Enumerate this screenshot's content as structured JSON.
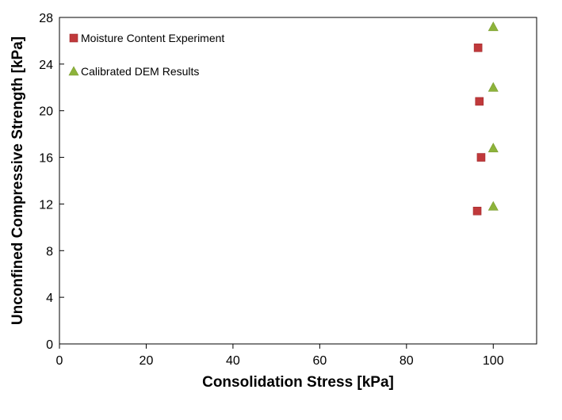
{
  "chart_data": {
    "type": "scatter",
    "title": "",
    "xlabel": "Consolidation Stress [kPa]",
    "ylabel": "Unconfined Compressive Strength [kPa]",
    "xlim": [
      0,
      110
    ],
    "ylim": [
      0,
      28
    ],
    "xticks": [
      "0",
      "20",
      "40",
      "60",
      "80",
      "100"
    ],
    "yticks": [
      "0",
      "4",
      "8",
      "12",
      "16",
      "20",
      "24",
      "28"
    ],
    "grid": false,
    "legend_position": "top-left",
    "series": [
      {
        "name": "Moisture Content Experiment",
        "marker": "square",
        "color": "#c0393b",
        "points": [
          {
            "x": 96.5,
            "y": 25.4
          },
          {
            "x": 96.8,
            "y": 20.8
          },
          {
            "x": 97.2,
            "y": 16.0
          },
          {
            "x": 96.3,
            "y": 11.4
          }
        ]
      },
      {
        "name": "Calibrated DEM Results",
        "marker": "triangle",
        "color": "#8db33b",
        "points": [
          {
            "x": 100,
            "y": 27.2
          },
          {
            "x": 100,
            "y": 22.0
          },
          {
            "x": 100,
            "y": 16.8
          },
          {
            "x": 100,
            "y": 11.8
          }
        ]
      }
    ]
  }
}
